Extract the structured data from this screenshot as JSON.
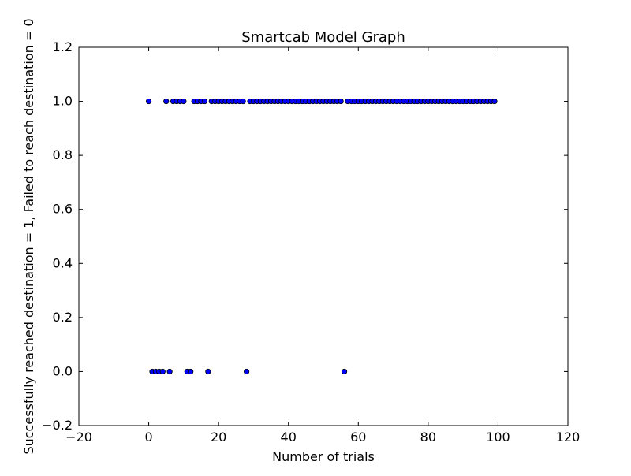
{
  "chart_data": {
    "type": "scatter",
    "title": "Smartcab Model Graph",
    "xlabel": "Number of trials",
    "ylabel": "Successfully reached destination = 1, Failed to reach destination = 0",
    "xlim": [
      -20,
      120
    ],
    "ylim": [
      -0.2,
      1.2
    ],
    "xticks": [
      -20,
      0,
      20,
      40,
      60,
      80,
      100,
      120
    ],
    "xtick_labels": [
      "−20",
      "0",
      "20",
      "40",
      "60",
      "80",
      "100",
      "120"
    ],
    "yticks": [
      -0.2,
      0.0,
      0.2,
      0.4,
      0.6,
      0.8,
      1.0,
      1.2
    ],
    "ytick_labels": [
      "−0.2",
      "0.0",
      "0.2",
      "0.4",
      "0.6",
      "0.8",
      "1.0",
      "1.2"
    ],
    "grid": false,
    "marker_color": "#0000ff",
    "marker_edge_color": "#000000",
    "points": [
      [
        0,
        1
      ],
      [
        1,
        0
      ],
      [
        2,
        0
      ],
      [
        3,
        0
      ],
      [
        4,
        0
      ],
      [
        5,
        1
      ],
      [
        6,
        0
      ],
      [
        7,
        1
      ],
      [
        8,
        1
      ],
      [
        9,
        1
      ],
      [
        10,
        1
      ],
      [
        11,
        0
      ],
      [
        12,
        0
      ],
      [
        13,
        1
      ],
      [
        14,
        1
      ],
      [
        15,
        1
      ],
      [
        16,
        1
      ],
      [
        17,
        0
      ],
      [
        18,
        1
      ],
      [
        19,
        1
      ],
      [
        20,
        1
      ],
      [
        21,
        1
      ],
      [
        22,
        1
      ],
      [
        23,
        1
      ],
      [
        24,
        1
      ],
      [
        25,
        1
      ],
      [
        26,
        1
      ],
      [
        27,
        1
      ],
      [
        28,
        0
      ],
      [
        29,
        1
      ],
      [
        30,
        1
      ],
      [
        31,
        1
      ],
      [
        32,
        1
      ],
      [
        33,
        1
      ],
      [
        34,
        1
      ],
      [
        35,
        1
      ],
      [
        36,
        1
      ],
      [
        37,
        1
      ],
      [
        38,
        1
      ],
      [
        39,
        1
      ],
      [
        40,
        1
      ],
      [
        41,
        1
      ],
      [
        42,
        1
      ],
      [
        43,
        1
      ],
      [
        44,
        1
      ],
      [
        45,
        1
      ],
      [
        46,
        1
      ],
      [
        47,
        1
      ],
      [
        48,
        1
      ],
      [
        49,
        1
      ],
      [
        50,
        1
      ],
      [
        51,
        1
      ],
      [
        52,
        1
      ],
      [
        53,
        1
      ],
      [
        54,
        1
      ],
      [
        55,
        1
      ],
      [
        56,
        0
      ],
      [
        57,
        1
      ],
      [
        58,
        1
      ],
      [
        59,
        1
      ],
      [
        60,
        1
      ],
      [
        61,
        1
      ],
      [
        62,
        1
      ],
      [
        63,
        1
      ],
      [
        64,
        1
      ],
      [
        65,
        1
      ],
      [
        66,
        1
      ],
      [
        67,
        1
      ],
      [
        68,
        1
      ],
      [
        69,
        1
      ],
      [
        70,
        1
      ],
      [
        71,
        1
      ],
      [
        72,
        1
      ],
      [
        73,
        1
      ],
      [
        74,
        1
      ],
      [
        75,
        1
      ],
      [
        76,
        1
      ],
      [
        77,
        1
      ],
      [
        78,
        1
      ],
      [
        79,
        1
      ],
      [
        80,
        1
      ],
      [
        81,
        1
      ],
      [
        82,
        1
      ],
      [
        83,
        1
      ],
      [
        84,
        1
      ],
      [
        85,
        1
      ],
      [
        86,
        1
      ],
      [
        87,
        1
      ],
      [
        88,
        1
      ],
      [
        89,
        1
      ],
      [
        90,
        1
      ],
      [
        91,
        1
      ],
      [
        92,
        1
      ],
      [
        93,
        1
      ],
      [
        94,
        1
      ],
      [
        95,
        1
      ],
      [
        96,
        1
      ],
      [
        97,
        1
      ],
      [
        98,
        1
      ],
      [
        99,
        1
      ]
    ]
  }
}
